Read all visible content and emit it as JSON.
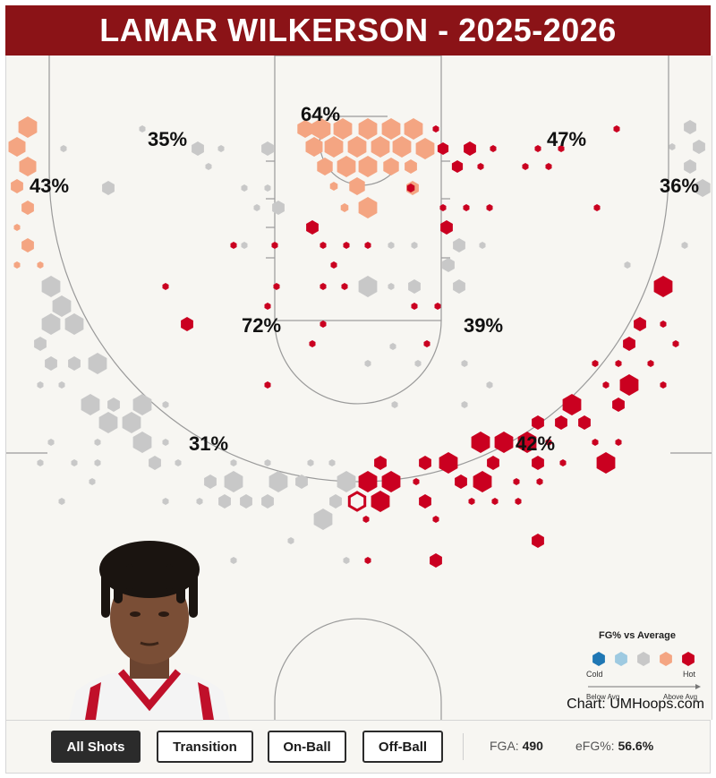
{
  "header": {
    "title": "LAMAR WILKERSON - 2025-2026"
  },
  "colors": {
    "cold": "#1f77b4",
    "cool": "#9ecae1",
    "avg": "#c8c8c8",
    "warm": "#f4a582",
    "hot": "#ca0020",
    "header_bg": "#8b1317"
  },
  "chart_data": {
    "type": "heatmap",
    "title": "LAMAR WILKERSON - 2025-2026",
    "zones": [
      {
        "name": "Left Corner",
        "fg_pct": "43%",
        "rating": "warm"
      },
      {
        "name": "Left Wing Mid-Range",
        "fg_pct": "35%",
        "rating": "avg"
      },
      {
        "name": "Rim",
        "fg_pct": "64%",
        "rating": "warm"
      },
      {
        "name": "Right Wing Mid-Range",
        "fg_pct": "47%",
        "rating": "hot"
      },
      {
        "name": "Right Corner",
        "fg_pct": "36%",
        "rating": "avg"
      },
      {
        "name": "Left Paint",
        "fg_pct": "72%",
        "rating": "hot"
      },
      {
        "name": "Right Elbow",
        "fg_pct": "39%",
        "rating": "hot"
      },
      {
        "name": "Left Wing Three",
        "fg_pct": "31%",
        "rating": "avg"
      },
      {
        "name": "Right Wing Three",
        "fg_pct": "42%",
        "rating": "hot"
      }
    ],
    "legend": {
      "title": "FG% vs Average",
      "low_label": "Cold",
      "high_label": "Hot",
      "axis_low": "Below Avg",
      "axis_high": "Above Avg",
      "swatches": [
        "cold",
        "cool",
        "avg",
        "warm",
        "hot"
      ]
    }
  },
  "credit": "Chart: UMHoops.com",
  "photo": {
    "icon": "player-headshot"
  },
  "filters": [
    {
      "label": "All Shots",
      "active": true
    },
    {
      "label": "Transition",
      "active": false
    },
    {
      "label": "On-Ball",
      "active": false
    },
    {
      "label": "Off-Ball",
      "active": false
    }
  ],
  "stats": {
    "fga_label": "FGA:",
    "fga_value": "490",
    "efg_label": "eFG%:",
    "efg_value": "56.6%"
  }
}
